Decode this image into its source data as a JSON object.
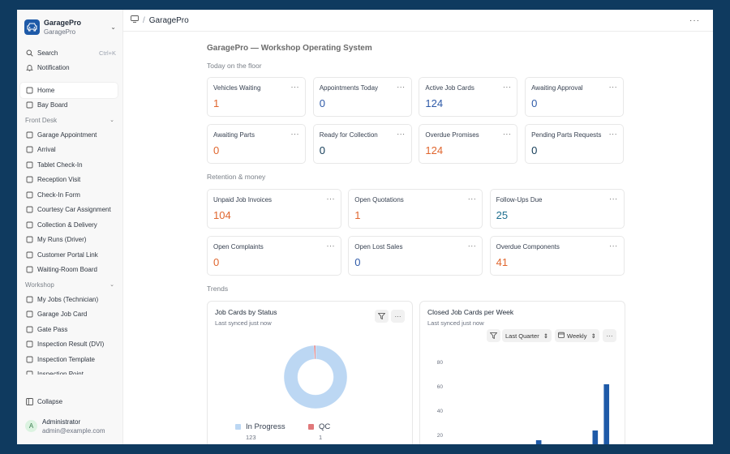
{
  "brand": {
    "name": "GaragePro",
    "workspace": "GaragePro",
    "icon": "car-icon"
  },
  "sidebar": {
    "search_label": "Search",
    "search_shortcut": "Ctrl+K",
    "notification_label": "Notification",
    "top_items": [
      {
        "label": "Home",
        "icon": "home-icon",
        "active": true
      },
      {
        "label": "Bay Board",
        "icon": "board-icon"
      }
    ],
    "front_desk": {
      "title": "Front Desk",
      "items": [
        {
          "label": "Garage Appointment",
          "icon": "calendar-icon"
        },
        {
          "label": "Arrival",
          "icon": "clipboard-icon"
        },
        {
          "label": "Tablet Check-In",
          "icon": "tablet-icon"
        },
        {
          "label": "Reception Visit",
          "icon": "user-icon"
        },
        {
          "label": "Check-In Form",
          "icon": "form-icon"
        },
        {
          "label": "Courtesy Car Assignment",
          "icon": "car-icon"
        },
        {
          "label": "Collection & Delivery",
          "icon": "truck-icon"
        },
        {
          "label": "My Runs (Driver)",
          "icon": "list-icon"
        },
        {
          "label": "Customer Portal Link",
          "icon": "key-icon"
        },
        {
          "label": "Waiting-Room Board",
          "icon": "monitor-icon"
        }
      ]
    },
    "workshop": {
      "title": "Workshop",
      "items": [
        {
          "label": "My Jobs (Technician)",
          "icon": "wrench-icon"
        },
        {
          "label": "Garage Job Card",
          "icon": "document-icon"
        },
        {
          "label": "Gate Pass",
          "icon": "document-icon"
        },
        {
          "label": "Inspection Result (DVI)",
          "icon": "document-icon"
        },
        {
          "label": "Inspection Template",
          "icon": "document-icon"
        },
        {
          "label": "Inspection Point",
          "icon": "document-icon"
        }
      ]
    },
    "collapse_label": "Collapse",
    "user": {
      "initial": "A",
      "name": "Administrator",
      "email": "admin@example.com"
    }
  },
  "topbar": {
    "breadcrumb": "GaragePro"
  },
  "page": {
    "title": "GaragePro — Workshop Operating System"
  },
  "sections": {
    "today": "Today on the floor",
    "retention": "Retention & money",
    "trends": "Trends"
  },
  "floor_cards": [
    {
      "label": "Vehicles Waiting",
      "value": "1",
      "color": "#e0662e"
    },
    {
      "label": "Appointments Today",
      "value": "0",
      "color": "#2e5aa8"
    },
    {
      "label": "Active Job Cards",
      "value": "124",
      "color": "#2e5aa8"
    },
    {
      "label": "Awaiting Approval",
      "value": "0",
      "color": "#2e5aa8"
    },
    {
      "label": "Awaiting Parts",
      "value": "0",
      "color": "#e0662e"
    },
    {
      "label": "Ready for Collection",
      "value": "0",
      "color": "#123b57"
    },
    {
      "label": "Overdue Promises",
      "value": "124",
      "color": "#e0662e"
    },
    {
      "label": "Pending Parts Requests",
      "value": "0",
      "color": "#123b57"
    }
  ],
  "money_cards": [
    {
      "label": "Unpaid Job Invoices",
      "value": "104",
      "color": "#e0662e"
    },
    {
      "label": "Open Quotations",
      "value": "1",
      "color": "#e0662e"
    },
    {
      "label": "Follow-Ups Due",
      "value": "25",
      "color": "#1d6e8e"
    },
    {
      "label": "Open Complaints",
      "value": "0",
      "color": "#e0662e"
    },
    {
      "label": "Open Lost Sales",
      "value": "0",
      "color": "#2e5aa8"
    },
    {
      "label": "Overdue Components",
      "value": "41",
      "color": "#e0662e"
    }
  ],
  "chart_status": {
    "title": "Job Cards by Status",
    "synced": "Last synced just now"
  },
  "chart_weekly": {
    "title": "Closed Job Cards per Week",
    "synced": "Last synced just now",
    "period_select": "Last Quarter",
    "interval_select": "Weekly"
  },
  "chart_data": [
    {
      "type": "pie",
      "title": "Job Cards by Status",
      "donut": true,
      "slices": [
        {
          "name": "In Progress",
          "value": 123,
          "color": "#bcd7f3"
        },
        {
          "name": "QC",
          "value": 1,
          "color": "#e0787a"
        }
      ]
    },
    {
      "type": "bar",
      "title": "Closed Job Cards per Week",
      "ylim": [
        0,
        90
      ],
      "yticks": [
        20,
        40,
        60,
        80
      ],
      "values": [
        0,
        0,
        0,
        0,
        0,
        0,
        0,
        0,
        0,
        0,
        0,
        0,
        0,
        0,
        0,
        0,
        16,
        0,
        0,
        0,
        0,
        0,
        0,
        0,
        0,
        0,
        24,
        0,
        62
      ],
      "color": "#1e5aa8"
    }
  ]
}
